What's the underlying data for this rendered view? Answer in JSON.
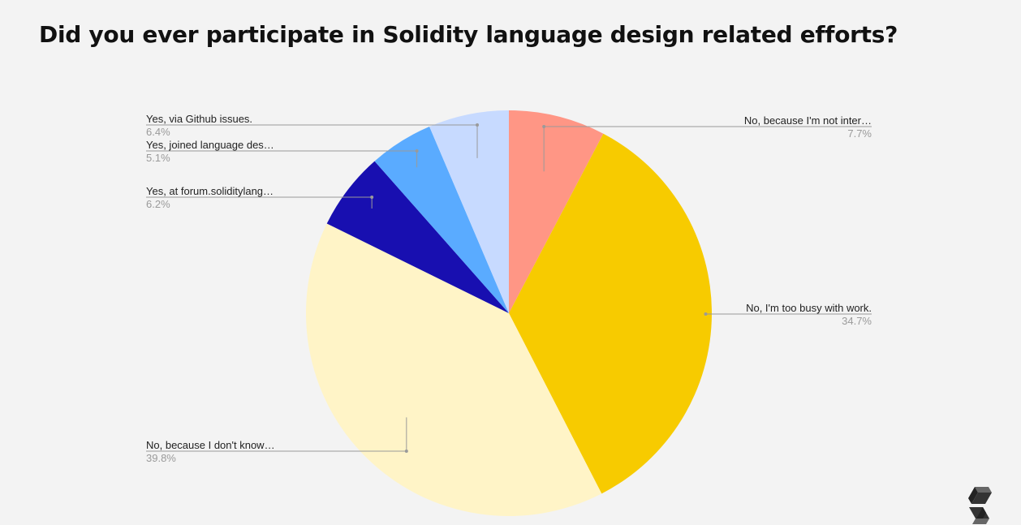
{
  "title": "Did you ever participate in Solidity language design related efforts?",
  "colors": {
    "background": "#f3f3f3",
    "leader_line": "#9a9a9a",
    "label_text": "#222222",
    "pct_text": "#9a9a9a"
  },
  "logo_icon": "solidity-logo-icon",
  "chart_data": {
    "type": "pie",
    "title": "Did you ever participate in Solidity language design related efforts?",
    "start_angle_deg": 0,
    "direction": "clockwise",
    "legend": "none",
    "slices": [
      {
        "label": "No, because I'm not inter…",
        "value": 7.7,
        "pct_label": "7.7%",
        "color": "#ff9685"
      },
      {
        "label": "No, I'm too busy with work.",
        "value": 34.7,
        "pct_label": "34.7%",
        "color": "#f7cb00"
      },
      {
        "label": "No, because I don't know…",
        "value": 39.8,
        "pct_label": "39.8%",
        "color": "#fff4c7"
      },
      {
        "label": "Yes, at forum.soliditylang…",
        "value": 6.2,
        "pct_label": "6.2%",
        "color": "#180fb0"
      },
      {
        "label": "Yes, joined language des…",
        "value": 5.1,
        "pct_label": "5.1%",
        "color": "#5aabff"
      },
      {
        "label": "Yes, via Github issues.",
        "value": 6.4,
        "pct_label": "6.4%",
        "color": "#c7daff"
      }
    ]
  }
}
